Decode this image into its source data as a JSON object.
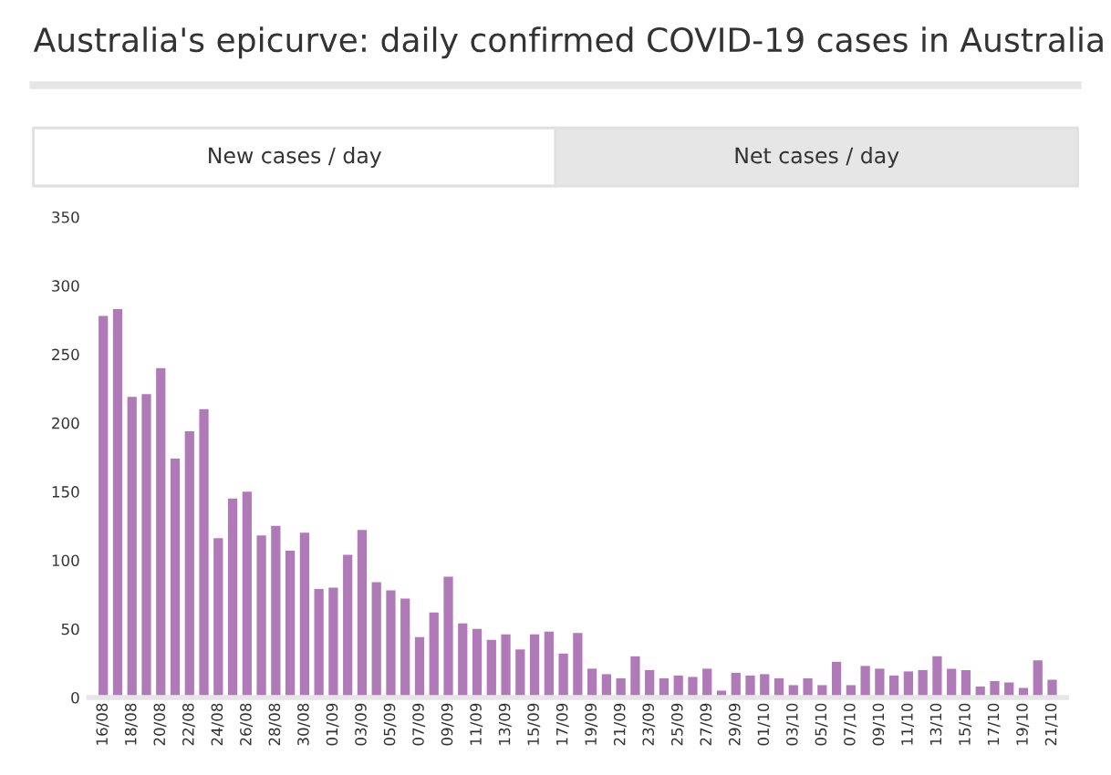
{
  "chart_data": {
    "type": "bar",
    "title": "Australia's epicurve: daily confirmed COVID-19 cases in Australia",
    "annotations": [
      "New cases / day",
      "Net cases / day"
    ],
    "categories": [
      "16/08",
      null,
      "18/08",
      null,
      "20/08",
      null,
      "22/08",
      null,
      "24/08",
      null,
      "26/08",
      null,
      "28/08",
      null,
      "30/08",
      null,
      "01/09",
      null,
      "03/09",
      null,
      "05/09",
      null,
      "07/09",
      null,
      "09/09",
      null,
      "11/09",
      null,
      "13/09",
      null,
      "15/09",
      null,
      "17/09",
      null,
      "19/09",
      null,
      "21/09",
      null,
      "23/09",
      null,
      "25/09",
      null,
      "27/09",
      null,
      "29/09",
      null,
      "01/10",
      null,
      "03/10",
      null,
      "05/10",
      null,
      "07/10",
      null,
      "09/10",
      null,
      "11/10",
      null,
      "13/10",
      null,
      "15/10",
      null,
      "17/10",
      null,
      "19/10",
      null,
      "21/10"
    ],
    "values": [
      278,
      283,
      219,
      221,
      240,
      174,
      194,
      210,
      116,
      145,
      150,
      118,
      125,
      107,
      120,
      79,
      80,
      104,
      122,
      84,
      78,
      72,
      44,
      62,
      88,
      54,
      50,
      42,
      46,
      35,
      46,
      48,
      32,
      47,
      21,
      17,
      14,
      30,
      20,
      14,
      16,
      15,
      21,
      5,
      18,
      16,
      17,
      14,
      9,
      14,
      9,
      26,
      9,
      23,
      21,
      16,
      19,
      20,
      30,
      21,
      20,
      8,
      12,
      11,
      7,
      27,
      13
    ],
    "color": "#b07ab8",
    "ylim": [
      0,
      350
    ],
    "yticks": [
      0,
      50,
      100,
      150,
      200,
      250,
      300,
      350
    ],
    "grid": false
  }
}
